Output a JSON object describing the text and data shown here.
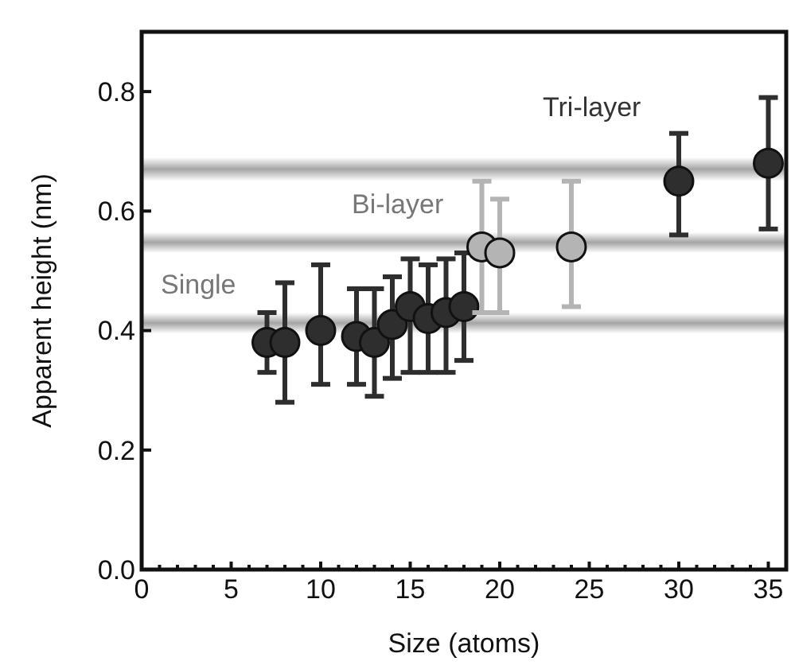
{
  "chart_data": {
    "type": "scatter",
    "xlabel": "Size (atoms)",
    "ylabel": "Apparent height (nm)",
    "xlim": [
      0,
      36
    ],
    "ylim": [
      0,
      0.9
    ],
    "xticks": [
      0,
      {
        "value": 1,
        "label": null
      },
      {
        "value": 2,
        "label": null
      },
      {
        "value": 3,
        "label": null
      },
      {
        "value": 4,
        "label": null
      },
      5,
      {
        "value": 6,
        "label": null
      },
      {
        "value": 7,
        "label": null
      },
      {
        "value": 8,
        "label": null
      },
      {
        "value": 9,
        "label": null
      },
      10,
      {
        "value": 11,
        "label": null
      },
      {
        "value": 12,
        "label": null
      },
      {
        "value": 13,
        "label": null
      },
      {
        "value": 14,
        "label": null
      },
      15,
      {
        "value": 16,
        "label": null
      },
      {
        "value": 17,
        "label": null
      },
      {
        "value": 18,
        "label": null
      },
      {
        "value": 19,
        "label": null
      },
      20,
      {
        "value": 21,
        "label": null
      },
      {
        "value": 22,
        "label": null
      },
      {
        "value": 23,
        "label": null
      },
      {
        "value": 24,
        "label": null
      },
      25,
      {
        "value": 26,
        "label": null
      },
      {
        "value": 27,
        "label": null
      },
      {
        "value": 28,
        "label": null
      },
      {
        "value": 29,
        "label": null
      },
      30,
      {
        "value": 31,
        "label": null
      },
      {
        "value": 32,
        "label": null
      },
      {
        "value": 33,
        "label": null
      },
      {
        "value": 34,
        "label": null
      },
      35
    ],
    "yticks": [
      {
        "value": 0,
        "label": "0.0"
      },
      {
        "value": 0.2,
        "label": "0.2"
      },
      {
        "value": 0.4,
        "label": "0.4"
      },
      {
        "value": 0.6,
        "label": "0.6"
      },
      {
        "value": 0.8,
        "label": "0.8"
      }
    ],
    "grid": false,
    "marker": "circle",
    "series": [
      {
        "color": "#2e2e2e",
        "x": [
          7,
          8,
          10,
          12,
          13,
          14,
          15,
          16,
          17,
          18,
          30,
          35
        ],
        "values": [
          0.38,
          0.38,
          0.4,
          0.39,
          0.38,
          0.41,
          0.44,
          0.42,
          0.43,
          0.44,
          0.65,
          0.68
        ],
        "errors": [
          [
            0.33,
            0.43
          ],
          [
            0.28,
            0.48
          ],
          [
            0.31,
            0.51
          ],
          [
            0.31,
            0.47
          ],
          [
            0.29,
            0.47
          ],
          [
            0.32,
            0.49
          ],
          [
            0.33,
            0.52
          ],
          [
            0.33,
            0.51
          ],
          [
            0.33,
            0.52
          ],
          [
            0.35,
            0.53
          ],
          [
            0.56,
            0.73
          ],
          [
            0.57,
            0.79
          ]
        ]
      },
      {
        "color": "#b4b4b4",
        "x": [
          19,
          20,
          24
        ],
        "values": [
          0.54,
          0.53,
          0.54
        ],
        "errors": [
          [
            0.43,
            0.65
          ],
          [
            0.43,
            0.62
          ],
          [
            0.44,
            0.65
          ]
        ]
      }
    ],
    "bands": [
      {
        "axis": "y",
        "from": 0.395,
        "to": 0.43,
        "color": "#9a9a9a",
        "label": "Single"
      },
      {
        "axis": "y",
        "from": 0.53,
        "to": 0.565,
        "color": "#9a9a9a",
        "label": "Bi-layer"
      },
      {
        "axis": "y",
        "from": 0.65,
        "to": 0.69,
        "color": "#9a9a9a",
        "label": "Tri-layer"
      }
    ]
  }
}
